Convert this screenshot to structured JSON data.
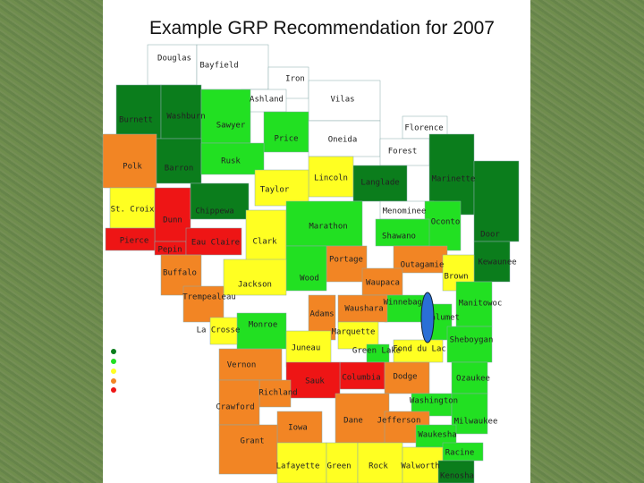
{
  "title": "Example GRP Recommendation for 2007",
  "counties": [
    {
      "name": "Douglas",
      "color": "#ffffff"
    },
    {
      "name": "Bayfield",
      "color": "#ffffff"
    },
    {
      "name": "Iron",
      "color": "#ffffff"
    },
    {
      "name": "Ashland",
      "color": "#ffffff"
    },
    {
      "name": "Vilas",
      "color": "#ffffff"
    },
    {
      "name": "Burnett",
      "color": "#0b7d1c"
    },
    {
      "name": "Washburn",
      "color": "#0b7d1c"
    },
    {
      "name": "Sawyer",
      "color": "#22e022"
    },
    {
      "name": "Price",
      "color": "#22e022"
    },
    {
      "name": "Oneida",
      "color": "#ffffff"
    },
    {
      "name": "Florence",
      "color": "#ffffff"
    },
    {
      "name": "Forest",
      "color": "#ffffff"
    },
    {
      "name": "Polk",
      "color": "#f28524"
    },
    {
      "name": "Barron",
      "color": "#0b7d1c"
    },
    {
      "name": "Rusk",
      "color": "#22e022"
    },
    {
      "name": "Lincoln",
      "color": "#ffff22"
    },
    {
      "name": "Taylor",
      "color": "#ffff22"
    },
    {
      "name": "Langlade",
      "color": "#0b7d1c"
    },
    {
      "name": "Marinette",
      "color": "#0b7d1c"
    },
    {
      "name": "St. Croix",
      "color": "#ffff22"
    },
    {
      "name": "Dunn",
      "color": "#ee1515"
    },
    {
      "name": "Chippewa",
      "color": "#0b7d1c"
    },
    {
      "name": "Menominee",
      "color": "#ffffff"
    },
    {
      "name": "Oconto",
      "color": "#22e022"
    },
    {
      "name": "Door",
      "color": "#0b7d1c"
    },
    {
      "name": "Pierce",
      "color": "#ee1515"
    },
    {
      "name": "Pepin",
      "color": "#ee1515"
    },
    {
      "name": "Eau Claire",
      "color": "#ee1515"
    },
    {
      "name": "Clark",
      "color": "#ffff22"
    },
    {
      "name": "Marathon",
      "color": "#22e022"
    },
    {
      "name": "Shawano",
      "color": "#22e022"
    },
    {
      "name": "Kewaunee",
      "color": "#0b7d1c"
    },
    {
      "name": "Buffalo",
      "color": "#f28524"
    },
    {
      "name": "Portage",
      "color": "#f28524"
    },
    {
      "name": "Outagamie",
      "color": "#f28524"
    },
    {
      "name": "Brown",
      "color": "#ffff22"
    },
    {
      "name": "Wood",
      "color": "#22e022"
    },
    {
      "name": "Jackson",
      "color": "#ffff22"
    },
    {
      "name": "Waupaca",
      "color": "#f28524"
    },
    {
      "name": "Trempealeau",
      "color": "#f28524"
    },
    {
      "name": "Winnebago",
      "color": "#22e022"
    },
    {
      "name": "Manitowoc",
      "color": "#22e022"
    },
    {
      "name": "Adams",
      "color": "#f28524"
    },
    {
      "name": "Waushara",
      "color": "#f28524"
    },
    {
      "name": "Calumet",
      "color": "#22e022"
    },
    {
      "name": "Monroe",
      "color": "#22e022"
    },
    {
      "name": "La Crosse",
      "color": "#ffff22"
    },
    {
      "name": "Marquette",
      "color": "#ffff22"
    },
    {
      "name": "Sheboygan",
      "color": "#22e022"
    },
    {
      "name": "Green Lake",
      "color": "#22e022"
    },
    {
      "name": "Fond du Lac",
      "color": "#ffff22"
    },
    {
      "name": "Juneau",
      "color": "#ffff22"
    },
    {
      "name": "Vernon",
      "color": "#f28524"
    },
    {
      "name": "Columbia",
      "color": "#ee1515"
    },
    {
      "name": "Dodge",
      "color": "#f28524"
    },
    {
      "name": "Sauk",
      "color": "#ee1515"
    },
    {
      "name": "Ozaukee",
      "color": "#22e022"
    },
    {
      "name": "Richland",
      "color": "#f28524"
    },
    {
      "name": "Washington",
      "color": "#22e022"
    },
    {
      "name": "Crawford",
      "color": "#f28524"
    },
    {
      "name": "Dane",
      "color": "#f28524"
    },
    {
      "name": "Jefferson",
      "color": "#f28524"
    },
    {
      "name": "Milwaukee",
      "color": "#22e022"
    },
    {
      "name": "Iowa",
      "color": "#f28524"
    },
    {
      "name": "Waukesha",
      "color": "#22e022"
    },
    {
      "name": "Grant",
      "color": "#f28524"
    },
    {
      "name": "Racine",
      "color": "#22e022"
    },
    {
      "name": "Lafayette",
      "color": "#ffff22"
    },
    {
      "name": "Green",
      "color": "#ffff22"
    },
    {
      "name": "Rock",
      "color": "#ffff22"
    },
    {
      "name": "Walworth",
      "color": "#ffff22"
    },
    {
      "name": "Kenosha",
      "color": "#0b7d1c"
    }
  ]
}
